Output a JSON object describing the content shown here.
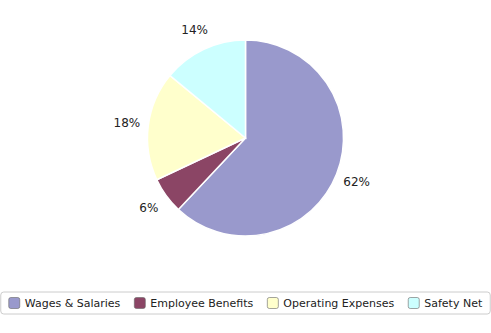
{
  "chart_data": {
    "type": "pie",
    "categories": [
      "Wages & Salaries",
      "Employee Benefits",
      "Operating Expenses",
      "Safety Net"
    ],
    "values": [
      62,
      6,
      18,
      14
    ],
    "value_labels": [
      "62%",
      "6%",
      "18%",
      "14%"
    ],
    "colors": [
      "#9999CC",
      "#8B4565",
      "#FFFFCC",
      "#CCFFFF"
    ],
    "data_labels": true,
    "legend": "bottom"
  }
}
